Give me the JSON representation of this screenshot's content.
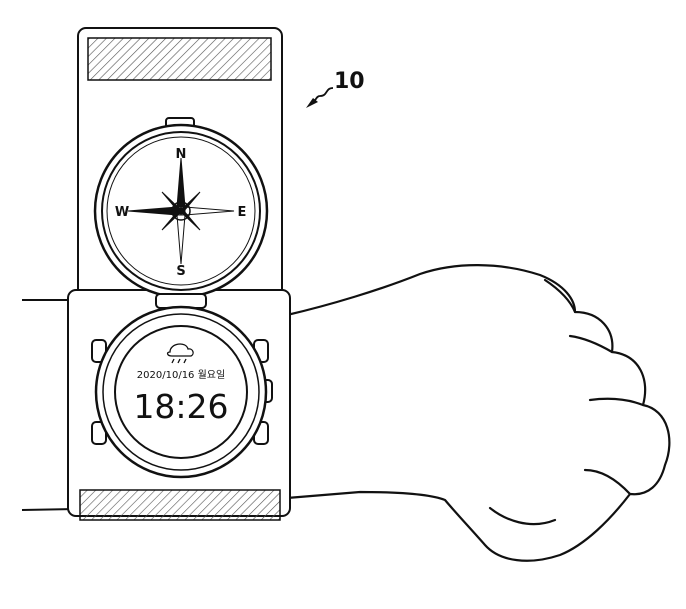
{
  "figure": {
    "reference_numeral": "10"
  },
  "compass": {
    "north": "N",
    "east": "E",
    "south": "S",
    "west": "W"
  },
  "watch_display": {
    "date_text": "2020/10/16 월요일",
    "time_text": "18:26"
  },
  "colors": {
    "line": "#111111",
    "background": "#ffffff"
  }
}
